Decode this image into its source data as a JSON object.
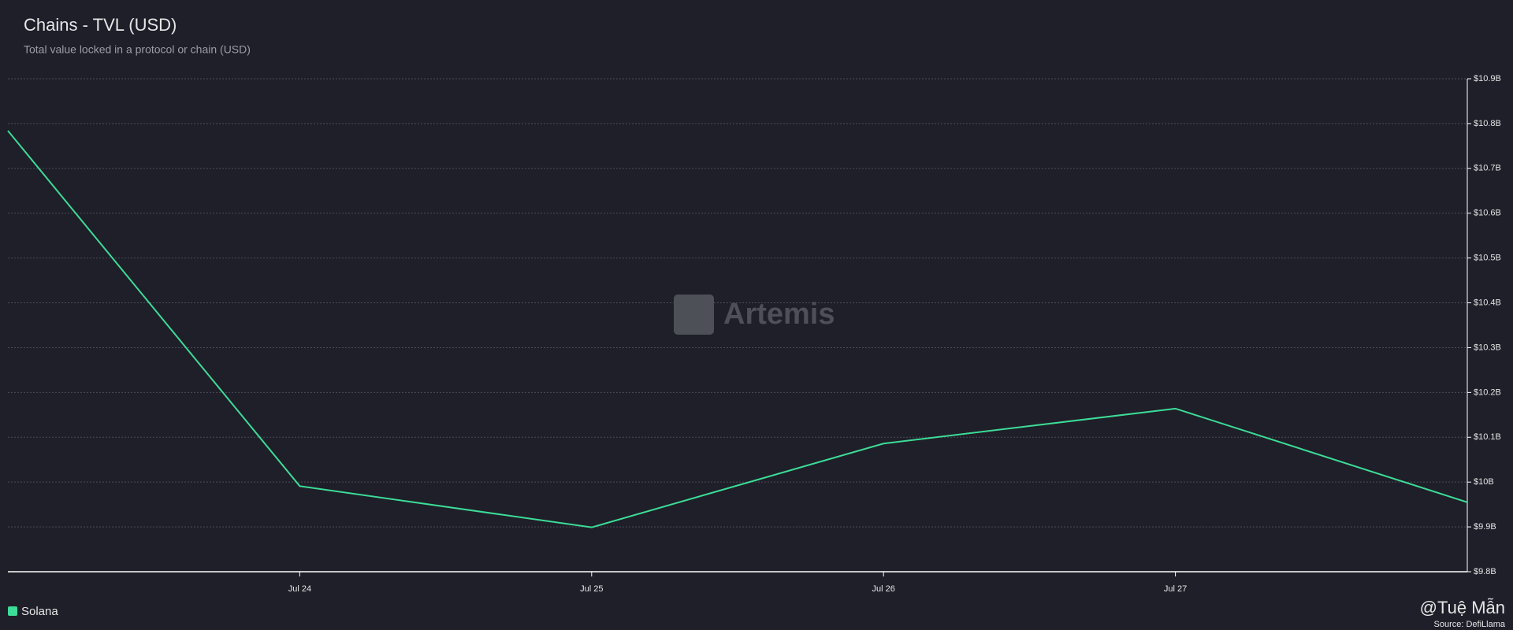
{
  "chart_data": {
    "type": "line",
    "title": "Chains - TVL (USD)",
    "subtitle": "Total value locked in a protocol or chain (USD)",
    "categories": [
      null,
      "Jul 24",
      "Jul 25",
      "Jul 26",
      "Jul 27",
      null
    ],
    "series": [
      {
        "name": "Solana",
        "color": "#3ddc97",
        "values": [
          10784000000,
          9991000000,
          9899000000,
          10086000000,
          10164000000,
          9955000000
        ]
      }
    ],
    "ylim": [
      9800000000,
      10900000000
    ],
    "yticks": [
      {
        "value": 9800000000,
        "label": "$9.8B"
      },
      {
        "value": 9900000000,
        "label": "$9.9B"
      },
      {
        "value": 10000000000,
        "label": "$10B"
      },
      {
        "value": 10100000000,
        "label": "$10.1B"
      },
      {
        "value": 10200000000,
        "label": "$10.2B"
      },
      {
        "value": 10300000000,
        "label": "$10.3B"
      },
      {
        "value": 10400000000,
        "label": "$10.4B"
      },
      {
        "value": 10500000000,
        "label": "$10.5B"
      },
      {
        "value": 10600000000,
        "label": "$10.6B"
      },
      {
        "value": 10700000000,
        "label": "$10.7B"
      },
      {
        "value": 10800000000,
        "label": "$10.8B"
      },
      {
        "value": 10900000000,
        "label": "$10.9B"
      }
    ],
    "grid": true,
    "legend": "bottom-left",
    "watermark": "Artemis",
    "credit": "@Tuệ Mẫn",
    "source": "Source: DefiLlama"
  }
}
